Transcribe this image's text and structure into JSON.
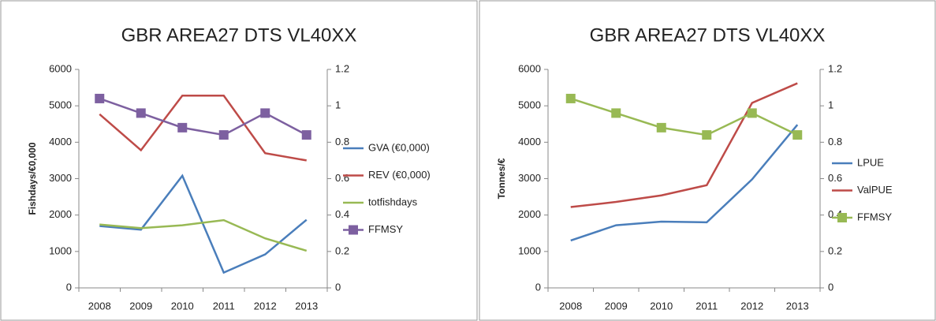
{
  "chart_data": [
    {
      "type": "line",
      "title": "GBR AREA27 DTS VL40XX",
      "y_label": "Fishdays/€0,000",
      "categories": [
        "2008",
        "2009",
        "2010",
        "2011",
        "2012",
        "2013"
      ],
      "ylim": [
        0,
        6000
      ],
      "yticks": [
        0,
        1000,
        2000,
        3000,
        4000,
        5000,
        6000
      ],
      "y2lim": [
        0,
        1.2
      ],
      "y2ticks": [
        0,
        0.2,
        0.4,
        0.6,
        0.8,
        1,
        1.2
      ],
      "grid": false,
      "legend": "right",
      "series": [
        {
          "name": "GVA (€0,000)",
          "color": "#4a7ebb",
          "values": [
            1700,
            1600,
            3080,
            420,
            920,
            1870
          ]
        },
        {
          "name": "REV (€0,000)",
          "color": "#be4b48",
          "values": [
            4770,
            3780,
            5280,
            5280,
            3700,
            3500
          ]
        },
        {
          "name": "totfishdays",
          "color": "#98b954",
          "values": [
            1740,
            1640,
            1720,
            1860,
            1360,
            1020
          ]
        },
        {
          "name": "FFMSY",
          "color": "#7d60a0",
          "axis": "y2",
          "marker": "square",
          "values": [
            1.04,
            0.96,
            0.88,
            0.84,
            0.96,
            0.84
          ]
        }
      ]
    },
    {
      "type": "line",
      "title": "GBR AREA27 DTS VL40XX",
      "y_label": "Tonnes/€",
      "categories": [
        "2008",
        "2009",
        "2010",
        "2011",
        "2012",
        "2013"
      ],
      "ylim": [
        0,
        6000
      ],
      "yticks": [
        0,
        1000,
        2000,
        3000,
        4000,
        5000,
        6000
      ],
      "y2lim": [
        0,
        1.2
      ],
      "y2ticks": [
        0,
        0.2,
        0.4,
        0.6,
        0.8,
        1,
        1.2
      ],
      "grid": false,
      "legend": "right",
      "series": [
        {
          "name": "LPUE",
          "color": "#4a7ebb",
          "values": [
            1300,
            1720,
            1820,
            1800,
            2980,
            4480
          ]
        },
        {
          "name": "ValPUE",
          "color": "#be4b48",
          "values": [
            2220,
            2360,
            2540,
            2820,
            5080,
            5620
          ]
        },
        {
          "name": "FFMSY",
          "color": "#98b954",
          "axis": "y2",
          "marker": "square",
          "values": [
            1.04,
            0.96,
            0.88,
            0.84,
            0.96,
            0.84
          ]
        }
      ]
    }
  ]
}
